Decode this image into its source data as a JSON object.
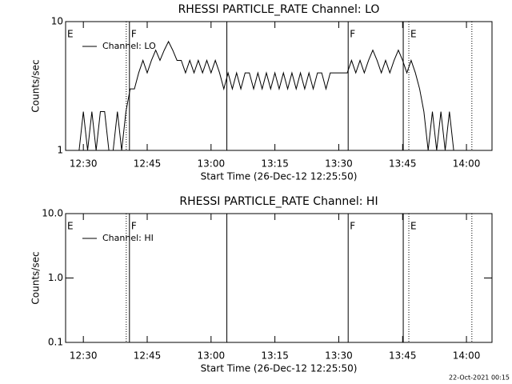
{
  "chart_data": [
    {
      "type": "line",
      "title": "RHESSI PARTICLE_RATE Channel: LO",
      "x_label": "Start Time (26-Dec-12 12:25:50)",
      "y_label": "Counts/sec",
      "log_y": true,
      "xlim": [
        745.83,
        846
      ],
      "ylim": [
        1,
        10
      ],
      "xticks": [
        {
          "value": 750,
          "label": "12:30"
        },
        {
          "value": 765,
          "label": "12:45"
        },
        {
          "value": 780,
          "label": "13:00"
        },
        {
          "value": 795,
          "label": "13:15"
        },
        {
          "value": 810,
          "label": "13:30"
        },
        {
          "value": 825,
          "label": "13:45"
        },
        {
          "value": 840,
          "label": "14:00"
        }
      ],
      "yticks": [
        1,
        10
      ],
      "legend": "upper left",
      "markers": [
        {
          "x": 760.08,
          "style": "dotted"
        },
        {
          "x": 760.83,
          "style": "solid"
        },
        {
          "x": 783.71,
          "style": "solid"
        },
        {
          "x": 812.21,
          "style": "solid"
        },
        {
          "x": 825.15,
          "style": "solid"
        },
        {
          "x": 826.46,
          "style": "dotted"
        },
        {
          "x": 841.27,
          "style": "dotted"
        }
      ],
      "flags": [
        {
          "x": 745.83,
          "label": "E"
        },
        {
          "x": 760.83,
          "label": "F"
        },
        {
          "x": 812.21,
          "label": "F"
        },
        {
          "x": 826.46,
          "label": "E"
        }
      ],
      "x": [
        749,
        750,
        751,
        752,
        753,
        754,
        755,
        756,
        757,
        758,
        759,
        760,
        761,
        762,
        763,
        764,
        765,
        766,
        767,
        768,
        769,
        770,
        771,
        772,
        773,
        774,
        775,
        776,
        777,
        778,
        779,
        780,
        781,
        782,
        783,
        784,
        785,
        786,
        787,
        788,
        789,
        790,
        791,
        792,
        793,
        794,
        795,
        796,
        797,
        798,
        799,
        800,
        801,
        802,
        803,
        804,
        805,
        806,
        807,
        808,
        809,
        810,
        811,
        812,
        813,
        814,
        815,
        816,
        817,
        818,
        819,
        820,
        821,
        822,
        823,
        824,
        825,
        826,
        827,
        828,
        829,
        830,
        831,
        832,
        833,
        834,
        835,
        836,
        837
      ],
      "series": [
        {
          "name": "Channel: LO",
          "color": "#000000",
          "values": [
            1,
            2,
            1,
            2,
            1,
            2,
            2,
            1,
            1,
            2,
            1,
            2,
            3,
            3,
            4,
            5,
            4,
            5,
            6,
            5,
            6,
            7,
            6,
            5,
            5,
            4,
            5,
            4,
            5,
            4,
            5,
            4,
            5,
            4,
            3,
            4,
            3,
            4,
            3,
            4,
            4,
            3,
            4,
            3,
            4,
            3,
            4,
            3,
            4,
            3,
            4,
            3,
            4,
            3,
            4,
            3,
            4,
            4,
            3,
            4,
            4,
            4,
            4,
            4,
            5,
            4,
            5,
            4,
            5,
            6,
            5,
            4,
            5,
            4,
            5,
            6,
            5,
            4,
            5,
            4,
            3,
            2,
            1,
            2,
            1,
            2,
            1,
            2,
            1
          ]
        }
      ]
    },
    {
      "type": "line",
      "title": "RHESSI PARTICLE_RATE Channel: HI",
      "x_label": "Start Time (26-Dec-12 12:25:50)",
      "y_label": "Counts/sec",
      "log_y": true,
      "xlim": [
        745.83,
        846
      ],
      "ylim": [
        0.1,
        10
      ],
      "xticks": [
        {
          "value": 750,
          "label": "12:30"
        },
        {
          "value": 765,
          "label": "12:45"
        },
        {
          "value": 780,
          "label": "13:00"
        },
        {
          "value": 795,
          "label": "13:15"
        },
        {
          "value": 810,
          "label": "13:30"
        },
        {
          "value": 825,
          "label": "13:45"
        },
        {
          "value": 840,
          "label": "14:00"
        }
      ],
      "yticks": [
        0.1,
        {
          "value": 1,
          "label": "1.0"
        },
        {
          "value": 10,
          "label": "10.0"
        }
      ],
      "legend": "upper left",
      "markers": [
        {
          "x": 760.08,
          "style": "dotted"
        },
        {
          "x": 760.83,
          "style": "solid"
        },
        {
          "x": 783.71,
          "style": "solid"
        },
        {
          "x": 812.21,
          "style": "solid"
        },
        {
          "x": 825.15,
          "style": "solid"
        },
        {
          "x": 826.46,
          "style": "dotted"
        },
        {
          "x": 841.27,
          "style": "dotted"
        }
      ],
      "flags": [
        {
          "x": 745.83,
          "label": "E"
        },
        {
          "x": 760.83,
          "label": "F"
        },
        {
          "x": 812.21,
          "label": "F"
        },
        {
          "x": 826.46,
          "label": "E"
        }
      ],
      "x": [],
      "series": [
        {
          "name": "Channel: HI",
          "color": "#000000",
          "values": []
        }
      ]
    }
  ],
  "footer": "22-Oct-2021 00:15"
}
